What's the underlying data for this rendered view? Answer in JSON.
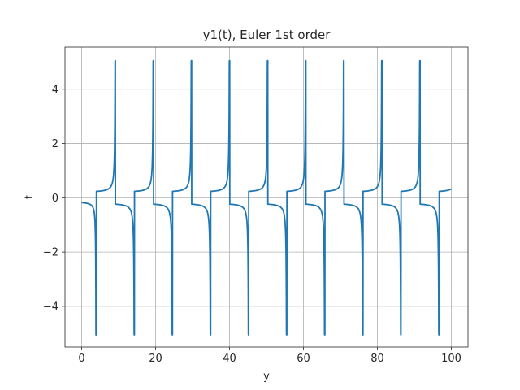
{
  "chart_data": {
    "type": "line",
    "title": "y1(t), Euler 1st order",
    "xlabel": "y",
    "ylabel": "t",
    "xlim": [
      -4.5,
      104.5
    ],
    "ylim": [
      -5.5,
      5.55
    ],
    "grid": true,
    "xticks": [
      0,
      20,
      40,
      60,
      80,
      100
    ],
    "yticks": [
      -4,
      -2,
      0,
      2,
      4
    ],
    "xtick_labels": [
      "0",
      "20",
      "40",
      "60",
      "80",
      "100"
    ],
    "ytick_labels": [
      "−4",
      "−2",
      "0",
      "2",
      "4"
    ],
    "series": [
      {
        "color": "#1f77b4",
        "period": 10.3,
        "y_range": [
          -5.05,
          5.05
        ],
        "x": [
          0,
          2.5,
          3.5,
          3.95,
          4.05,
          4.4,
          5.5,
          7.5,
          8.6,
          9.05,
          9.2,
          9.6,
          11.0,
          13.5,
          14.35,
          14.5
        ],
        "y": [
          -0.15,
          -0.3,
          -1.2,
          -5.05,
          0.2,
          0.25,
          0.35,
          0.8,
          2.6,
          5.05,
          -0.2,
          -0.25,
          -0.35,
          -0.9,
          -5.0,
          0.2
        ]
      }
    ]
  }
}
